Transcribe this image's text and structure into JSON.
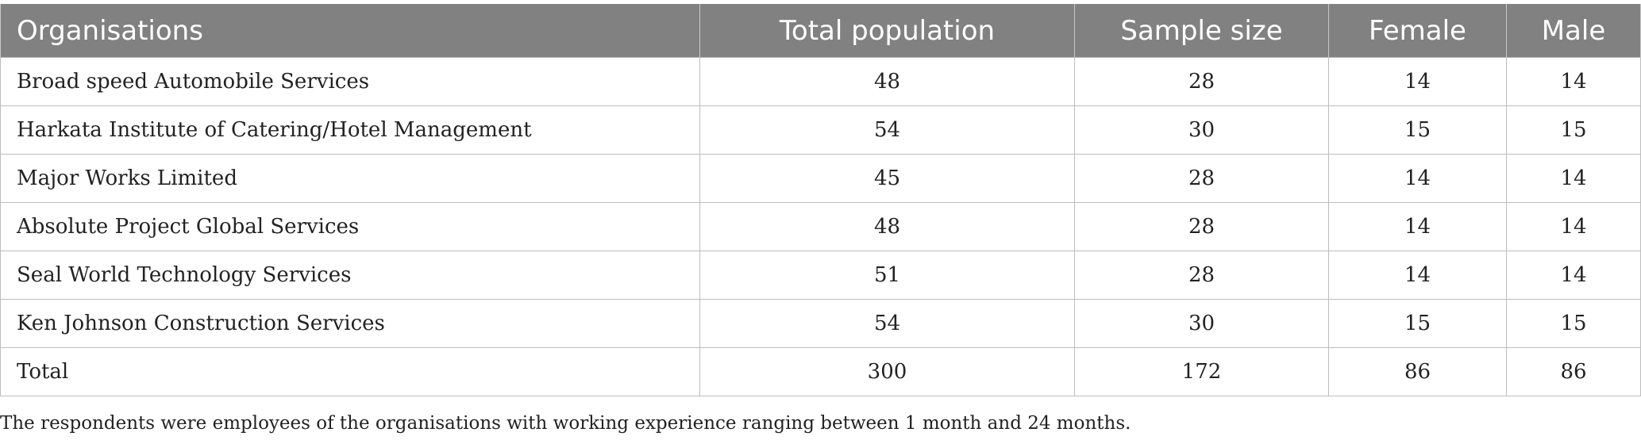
{
  "table": {
    "headers": [
      "Organisations",
      "Total population",
      "Sample size",
      "Female",
      "Male"
    ],
    "rows": [
      [
        "Broad speed Automobile Services",
        "48",
        "28",
        "14",
        "14"
      ],
      [
        "Harkata Institute of Catering/Hotel Management",
        "54",
        "30",
        "15",
        "15"
      ],
      [
        "Major Works Limited",
        "45",
        "28",
        "14",
        "14"
      ],
      [
        "Absolute Project Global Services",
        "48",
        "28",
        "14",
        "14"
      ],
      [
        "Seal World Technology Services",
        "51",
        "28",
        "14",
        "14"
      ],
      [
        "Ken Johnson Construction Services",
        "54",
        "30",
        "15",
        "15"
      ],
      [
        "Total",
        "300",
        "172",
        "86",
        "86"
      ]
    ]
  },
  "footnote": "The respondents were employees of the organisations with working experience ranging between 1 month and 24 months.",
  "colors": {
    "header_bg": "#808180",
    "header_text": "#ffffff",
    "border": "#bdbdbd"
  }
}
